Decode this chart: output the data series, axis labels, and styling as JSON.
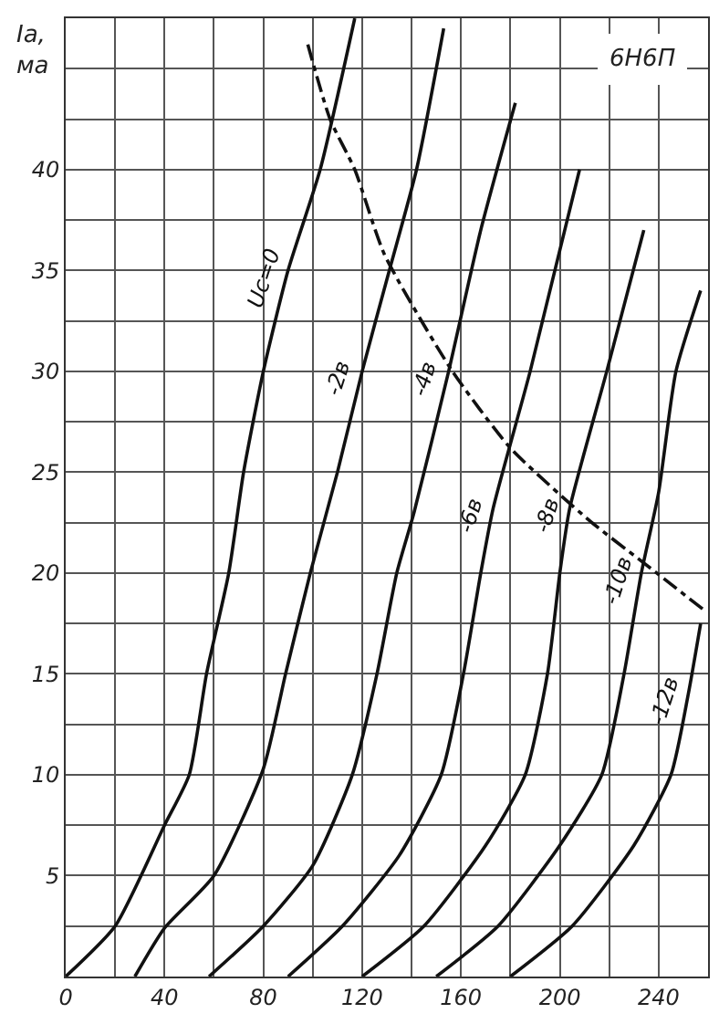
{
  "chart_data": {
    "type": "line",
    "title": "6Н6П",
    "ylabel": "Iа, ма",
    "xlim": [
      0,
      260
    ],
    "ylim": [
      0,
      47.5
    ],
    "xticks": [
      0,
      {
        "value": 20,
        "label": null
      },
      40,
      {
        "value": 60,
        "label": null
      },
      80,
      {
        "value": 100,
        "label": null
      },
      120,
      {
        "value": 140,
        "label": null
      },
      160,
      {
        "value": 180,
        "label": null
      },
      200,
      {
        "value": 220,
        "label": null
      },
      240,
      {
        "value": 260,
        "label": null
      }
    ],
    "yticks": [
      {
        "value": 0,
        "label": null
      },
      {
        "value": 2.5,
        "label": null
      },
      5,
      {
        "value": 7.5,
        "label": null
      },
      10,
      {
        "value": 12.5,
        "label": null
      },
      15,
      {
        "value": 17.5,
        "label": null
      },
      20,
      {
        "value": 22.5,
        "label": null
      },
      25,
      {
        "value": 27.5,
        "label": null
      },
      30,
      {
        "value": 32.5,
        "label": null
      },
      35,
      {
        "value": 37.5,
        "label": null
      },
      40,
      {
        "value": 42.5,
        "label": null
      },
      {
        "value": 45,
        "label": null
      },
      {
        "value": 47.5,
        "label": null
      }
    ],
    "grid": true,
    "marker": "none",
    "line_style": "solid",
    "series": [
      {
        "color": "#111111",
        "x": [
          0,
          20,
          40,
          50,
          57,
          66,
          72,
          80,
          90,
          103,
          117
        ],
        "values": [
          0,
          2.5,
          7.5,
          10,
          15,
          20,
          25,
          30,
          35,
          40,
          47.5
        ]
      },
      {
        "color": "#111111",
        "x": [
          28,
          40,
          60,
          80,
          89,
          99,
          110,
          120,
          131,
          142,
          153
        ],
        "values": [
          0,
          2.4,
          5,
          10.3,
          15,
          20,
          25,
          30,
          35,
          40,
          47
        ]
      },
      {
        "color": "#111111",
        "x": [
          58,
          80,
          100,
          116,
          126,
          134,
          141,
          155,
          168,
          182
        ],
        "values": [
          0,
          2.5,
          5.5,
          10,
          15,
          20,
          23,
          30,
          37,
          43.3
        ]
      },
      {
        "color": "#111111",
        "x": [
          90,
          112,
          135,
          152,
          161,
          168,
          173,
          188,
          208
        ],
        "values": [
          0,
          2.5,
          6,
          10,
          15,
          20,
          23.2,
          30,
          40
        ]
      },
      {
        "color": "#111111",
        "x": [
          120,
          145,
          170,
          186,
          195,
          200,
          204,
          219,
          234
        ],
        "values": [
          0,
          2.5,
          6.5,
          10,
          15,
          20,
          23.2,
          30,
          37
        ]
      },
      {
        "color": "#111111",
        "x": [
          150,
          175,
          200,
          217,
          226,
          233,
          240,
          247,
          257
        ],
        "values": [
          0,
          2.5,
          6.5,
          10,
          15,
          20,
          24,
          30,
          34
        ]
      },
      {
        "color": "#111111",
        "x": [
          180,
          205,
          230,
          245,
          252,
          257
        ],
        "values": [
          0,
          2.5,
          6.5,
          10,
          14,
          17.5
        ]
      },
      {
        "color": "#111111",
        "line_style": "dashed",
        "x": [
          98,
          107,
          117,
          129,
          156,
          180,
          212,
          234,
          258
        ],
        "values": [
          46.2,
          42.5,
          40,
          35.8,
          30.1,
          26.2,
          22.6,
          20.5,
          18.2
        ]
      }
    ],
    "annotations": [
      {
        "text": "Uc=0",
        "x": 90,
        "y": 35
      },
      {
        "text": "-2в",
        "x": 120,
        "y": 30
      },
      {
        "text": "-4в",
        "x": 155,
        "y": 30
      },
      {
        "text": "-6в",
        "x": 173,
        "y": 23.2
      },
      {
        "text": "-8в",
        "x": 204,
        "y": 23.2
      },
      {
        "text": "-10в",
        "x": 233,
        "y": 20
      },
      {
        "text": "-12в",
        "x": 252,
        "y": 14
      }
    ]
  }
}
